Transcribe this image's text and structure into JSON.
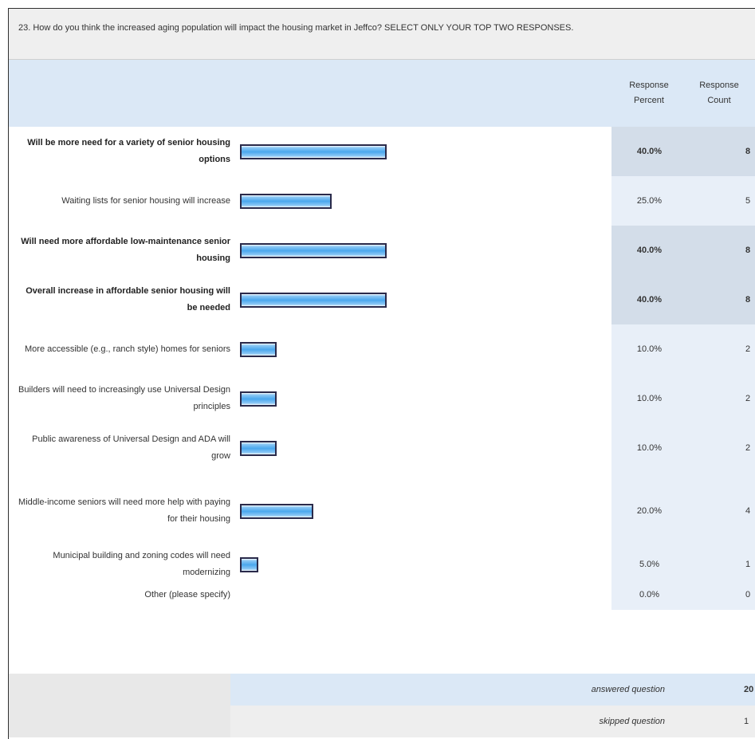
{
  "question": {
    "title": "23. How do you think the increased aging population will impact the housing market in Jeffco? SELECT ONLY YOUR TOP TWO RESPONSES."
  },
  "columns": {
    "percent_line1": "Response",
    "percent_line2": "Percent",
    "count_line1": "Response",
    "count_line2": "Count"
  },
  "chart_data": {
    "type": "bar",
    "categories": [
      "Will be more need for a variety of senior housing options",
      "Waiting lists for senior housing will increase",
      "Will need more affordable low-maintenance senior housing",
      "Overall increase in affordable senior housing will be needed",
      "More accessible (e.g., ranch style) homes for seniors",
      "Builders will need to increasingly use Universal Design principles",
      "Public awareness of Universal Design and ADA will grow",
      "Middle-income seniors will need more help with paying for their housing",
      "Municipal building and zoning codes will need modernizing",
      "Other (please specify)"
    ],
    "values": [
      40.0,
      25.0,
      40.0,
      40.0,
      10.0,
      10.0,
      10.0,
      20.0,
      5.0,
      0.0
    ],
    "percent_labels": [
      "40.0%",
      "25.0%",
      "40.0%",
      "40.0%",
      "10.0%",
      "10.0%",
      "10.0%",
      "20.0%",
      "5.0%",
      "0.0%"
    ],
    "counts": [
      "8",
      "5",
      "8",
      "8",
      "2",
      "2",
      "2",
      "4",
      "1",
      "0"
    ],
    "highlighted": [
      true,
      false,
      true,
      true,
      false,
      false,
      false,
      false,
      false,
      false
    ],
    "xlim": [
      0,
      100
    ],
    "title": "",
    "xlabel": "",
    "ylabel": ""
  },
  "summary": {
    "answered_label": "answered question",
    "answered_value": "20",
    "skipped_label": "skipped question",
    "skipped_value": "1"
  },
  "colors": {
    "bar_fill": "#4aa7ee",
    "bar_border": "#2a2a4a",
    "header_bg": "#dbe8f6",
    "highlight_cell_bg": "#d3dde9",
    "normal_cell_bg": "#e8eff8"
  }
}
